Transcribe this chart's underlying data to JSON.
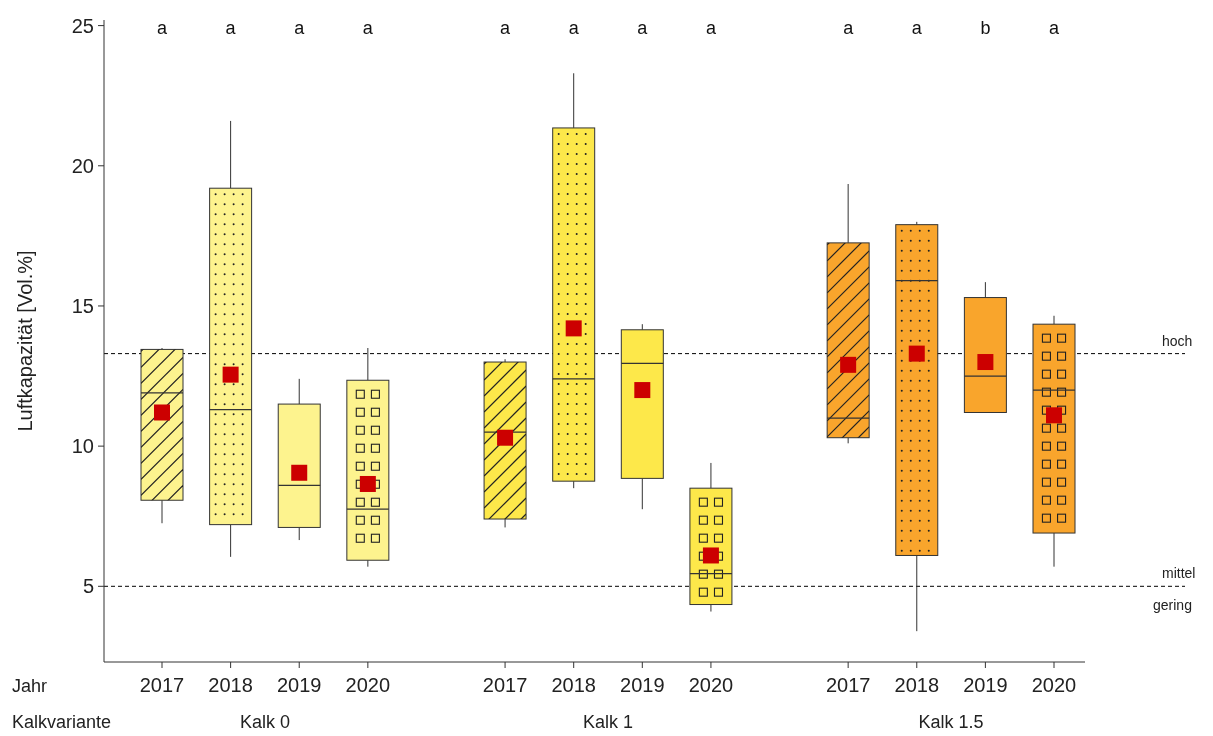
{
  "chart_data": {
    "type": "box",
    "ylabel": "Luftkapazität [Vol.%]",
    "xlabel": "Jahr",
    "categories": [
      "2017",
      "2018",
      "2019",
      "2020",
      null,
      "2017",
      "2018",
      "2019",
      "2020",
      null,
      "2017",
      "2018",
      "2019",
      "2020"
    ],
    "ylim": [
      2.3,
      25.2
    ],
    "yticks": [
      5,
      10,
      15,
      20,
      25
    ],
    "marker": "square",
    "colors": [
      "#fdf38e",
      "#fdf38e",
      "#fdf38e",
      "#fdf38e",
      null,
      "#fde84a",
      "#fde84a",
      "#fde84a",
      "#fde84a",
      null,
      "#f9a52c",
      "#f9a52c",
      "#f9a52c",
      "#f9a52c"
    ],
    "boxes": [
      {
        "low": 7.25,
        "q1": 8.07,
        "median": 11.9,
        "q3": 13.45,
        "high": 13.5,
        "mean": 11.2
      },
      {
        "low": 6.05,
        "q1": 7.2,
        "median": 11.3,
        "q3": 19.2,
        "high": 21.6,
        "mean": 12.55
      },
      {
        "low": 6.65,
        "q1": 7.1,
        "median": 8.6,
        "q3": 11.5,
        "high": 12.4,
        "mean": 9.05
      },
      {
        "low": 5.7,
        "q1": 5.93,
        "median": 7.75,
        "q3": 12.35,
        "high": 13.5,
        "mean": 8.65
      },
      null,
      {
        "low": 7.1,
        "q1": 7.4,
        "median": 10.5,
        "q3": 13.0,
        "high": 13.1,
        "mean": 10.3
      },
      {
        "low": 8.5,
        "q1": 8.75,
        "median": 12.4,
        "q3": 21.35,
        "high": 23.3,
        "mean": 14.2
      },
      {
        "low": 7.75,
        "q1": 8.85,
        "median": 12.95,
        "q3": 14.15,
        "high": 14.35,
        "mean": 12.0
      },
      {
        "low": 4.1,
        "q1": 4.35,
        "median": 5.45,
        "q3": 8.5,
        "high": 9.4,
        "mean": 6.1
      },
      null,
      {
        "low": 10.1,
        "q1": 10.3,
        "median": 11.0,
        "q3": 17.25,
        "high": 19.35,
        "mean": 12.9
      },
      {
        "low": 3.4,
        "q1": 6.1,
        "median": 15.9,
        "q3": 17.9,
        "high": 18.0,
        "mean": 13.3
      },
      {
        "low": 11.2,
        "q1": 11.2,
        "median": 12.5,
        "q3": 15.3,
        "high": 15.85,
        "mean": 13.0
      },
      {
        "low": 5.7,
        "q1": 6.9,
        "median": 12.0,
        "q3": 14.35,
        "high": 14.65,
        "mean": 11.1
      }
    ],
    "ref_lines": [
      {
        "axis": "y",
        "value": 13.3,
        "label": "hoch",
        "line_style": "dashed",
        "color": "#000000"
      },
      {
        "axis": "y",
        "value": 5,
        "label": "mittel",
        "line_style": "dashed",
        "color": "#000000"
      }
    ],
    "annotations": [
      "a",
      "a",
      "a",
      "a",
      "a",
      "a",
      "a",
      "a",
      "a",
      "a",
      "b",
      "a",
      "Kalkvariante",
      "Kalk 0",
      "Kalk 1",
      "Kalk 1.5",
      {
        "text": "gering",
        "y": 5
      }
    ]
  }
}
